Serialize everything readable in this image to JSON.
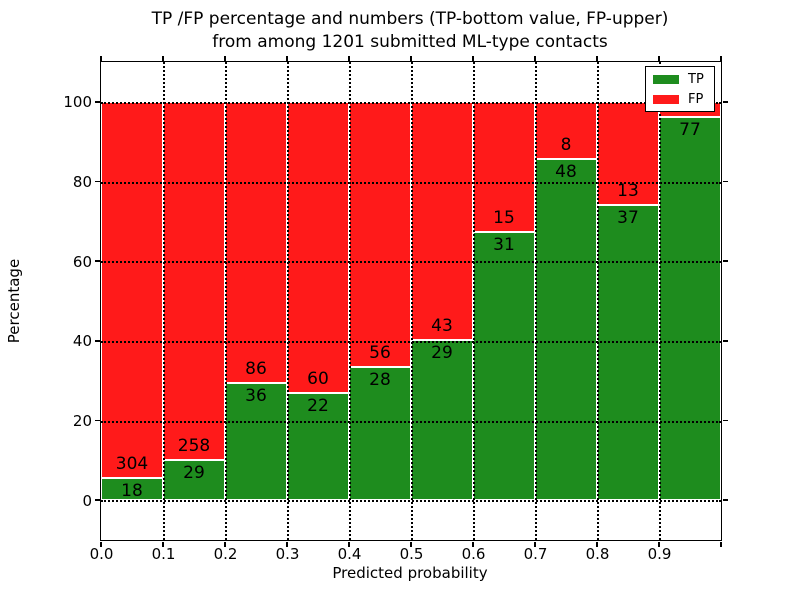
{
  "title": {
    "line1": "TP /FP percentage and numbers (TP-bottom value, FP-upper)",
    "line2": "from among 1201 submitted ML-type contacts"
  },
  "axes": {
    "xlabel": "Predicted probability",
    "ylabel": "Percentage",
    "x_tick_labels": [
      "0.0",
      "0.1",
      "0.2",
      "0.3",
      "0.4",
      "0.5",
      "0.6",
      "0.7",
      "0.8",
      "0.9"
    ],
    "y_tick_labels": [
      "0",
      "20",
      "40",
      "60",
      "80",
      "100"
    ],
    "y_tick_values": [
      0,
      20,
      40,
      60,
      80,
      100
    ],
    "xlim": [
      0.0,
      1.0
    ],
    "ylim": [
      -10,
      110
    ],
    "grid": true,
    "grid_style": "dotted"
  },
  "legend": {
    "position": "upper right",
    "items": [
      {
        "label": "TP",
        "color": "#1e8c1e"
      },
      {
        "label": "FP",
        "color": "#ff1a1a"
      }
    ]
  },
  "chart_data": {
    "type": "bar",
    "stacked": true,
    "bin_width": 0.1,
    "note": "Each bin 0.1 wide; green TP% on bottom, red FP% on top, summing to 100%. Counts annotated at the TP/FP boundary.",
    "colors": {
      "tp": "#1e8c1e",
      "fp": "#ff1a1a"
    },
    "bins": [
      {
        "x0": 0.0,
        "x1": 0.1,
        "tp": 18,
        "fp": 304,
        "tp_pct": 5.59
      },
      {
        "x0": 0.1,
        "x1": 0.2,
        "tp": 29,
        "fp": 258,
        "tp_pct": 10.1
      },
      {
        "x0": 0.2,
        "x1": 0.3,
        "tp": 36,
        "fp": 86,
        "tp_pct": 29.51
      },
      {
        "x0": 0.3,
        "x1": 0.4,
        "tp": 22,
        "fp": 60,
        "tp_pct": 26.83
      },
      {
        "x0": 0.4,
        "x1": 0.5,
        "tp": 28,
        "fp": 56,
        "tp_pct": 33.33
      },
      {
        "x0": 0.5,
        "x1": 0.6,
        "tp": 29,
        "fp": 43,
        "tp_pct": 40.28
      },
      {
        "x0": 0.6,
        "x1": 0.7,
        "tp": 31,
        "fp": 15,
        "tp_pct": 67.39
      },
      {
        "x0": 0.7,
        "x1": 0.8,
        "tp": 48,
        "fp": 8,
        "tp_pct": 85.71
      },
      {
        "x0": 0.8,
        "x1": 0.9,
        "tp": 37,
        "fp": 13,
        "tp_pct": 74.0
      },
      {
        "x0": 0.9,
        "x1": 1.0,
        "tp": 77,
        "fp": null,
        "tp_pct": 96.25
      }
    ]
  }
}
